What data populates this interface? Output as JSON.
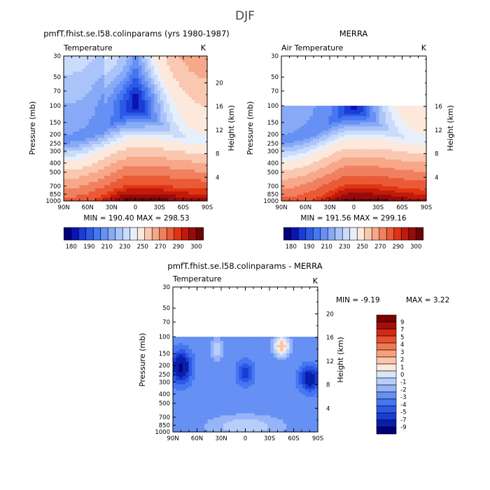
{
  "page_title": "DJF",
  "colors": {
    "temp_scale": [
      "#00007a",
      "#0a14b4",
      "#1a3cd4",
      "#2c5ae6",
      "#4676f0",
      "#6690f4",
      "#88aaf6",
      "#aac4fa",
      "#cadcfa",
      "#e6f0fc",
      "#fde8dc",
      "#fac8b0",
      "#f6a888",
      "#f08060",
      "#ea5a36",
      "#e03414",
      "#c01a0a",
      "#960c0c",
      "#6e0404"
    ],
    "diff_scale": [
      "#00007a",
      "#0a1ea8",
      "#1a3cd4",
      "#2c5ae6",
      "#4676f0",
      "#6690f4",
      "#96b4f6",
      "#b8cefa",
      "#d6e6fc",
      "#fde8dc",
      "#fac4a8",
      "#f6a07c",
      "#f07a52",
      "#e85030",
      "#d02a12",
      "#a80c0c",
      "#7a0000"
    ],
    "frame": "#000000"
  },
  "chart_data": [
    {
      "type": "heatmap",
      "name": "model",
      "title": "pmfT.fhist.se.l58.colinparams (yrs 1980-1987)",
      "subtitle_left": "Temperature",
      "subtitle_right": "K",
      "xlabel": "",
      "ylabel": "Pressure (mb)",
      "ylabel_right": "Height (km)",
      "x_ticks": [
        "90N",
        "60N",
        "30N",
        "0",
        "30S",
        "60S",
        "90S"
      ],
      "y_ticks": [
        "30",
        "50",
        "70",
        "100",
        "150",
        "200",
        "250",
        "300",
        "400",
        "500",
        "700",
        "850",
        "1000"
      ],
      "height_ticks": [
        "20",
        "16",
        "12",
        "8",
        "4"
      ],
      "min_max_text": "MIN = 190.40   MAX = 298.53",
      "colorbar_labels": [
        "180",
        "190",
        "210",
        "230",
        "250",
        "270",
        "290",
        "300"
      ],
      "data_top_mb": 30
    },
    {
      "type": "heatmap",
      "name": "merra",
      "title": "MERRA",
      "subtitle_left": "Air Temperature",
      "subtitle_right": "K",
      "xlabel": "",
      "ylabel": "Pressure (mb)",
      "ylabel_right": "Height (km)",
      "x_ticks": [
        "90N",
        "60N",
        "30N",
        "0",
        "30S",
        "60S",
        "90S"
      ],
      "y_ticks": [
        "30",
        "50",
        "70",
        "100",
        "150",
        "200",
        "250",
        "300",
        "400",
        "500",
        "700",
        "850",
        "1000"
      ],
      "height_ticks": [
        "16",
        "12",
        "8",
        "4"
      ],
      "min_max_text": "MIN = 191.56   MAX = 299.16",
      "colorbar_labels": [
        "180",
        "190",
        "210",
        "230",
        "250",
        "270",
        "290",
        "300"
      ],
      "data_top_mb": 100
    },
    {
      "type": "heatmap",
      "name": "difference",
      "title": "pmfT.fhist.se.l58.colinparams - MERRA",
      "subtitle_left": "Temperature",
      "subtitle_right": "K",
      "xlabel": "",
      "ylabel": "Pressure (mb)",
      "ylabel_right": "Height (km)",
      "x_ticks": [
        "90N",
        "60N",
        "30N",
        "0",
        "30S",
        "60S",
        "90S"
      ],
      "y_ticks": [
        "30",
        "50",
        "70",
        "100",
        "150",
        "200",
        "250",
        "300",
        "400",
        "500",
        "700",
        "850",
        "1000"
      ],
      "height_ticks": [
        "20",
        "16",
        "12",
        "8",
        "4"
      ],
      "min_text": "MIN =   -9.19",
      "max_text": "MAX =    3.22",
      "colorbar_labels": [
        "9",
        "7",
        "5",
        "4",
        "3",
        "2",
        "1",
        "0",
        "-1",
        "-2",
        "-3",
        "-4",
        "-5",
        "-7",
        "-9"
      ],
      "data_top_mb": 100
    }
  ]
}
